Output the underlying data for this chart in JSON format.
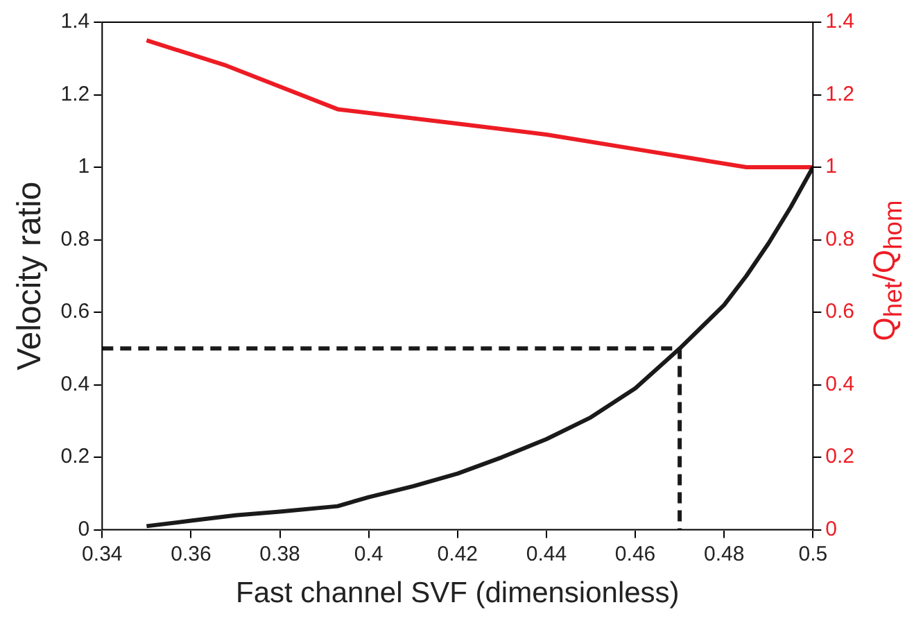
{
  "chart_data": {
    "type": "line",
    "xlabel": "Fast channel SVF (dimensionless)",
    "ylabel": "Velocity ratio",
    "y2label": "Q$_{het}$/Q$_{hom}$",
    "xlim": [
      0.34,
      0.5
    ],
    "xticks": [
      0.34,
      0.36,
      0.38,
      0.4,
      0.42,
      0.44,
      0.46,
      0.48,
      0.5
    ],
    "ylim": [
      0,
      1.4
    ],
    "yticks": [
      0,
      0.2,
      0.4,
      0.6,
      0.8,
      1,
      1.2,
      1.4
    ],
    "y2lim": [
      0,
      1.4
    ],
    "y2ticks": [
      0,
      0.2,
      0.4,
      0.6,
      0.8,
      1,
      1.2,
      1.4
    ],
    "grid": false,
    "marker": "none",
    "series": [
      {
        "color": "#1a1a1a",
        "line_style": "solid",
        "x": [
          0.35,
          0.36,
          0.37,
          0.38,
          0.393,
          0.4,
          0.41,
          0.42,
          0.43,
          0.44,
          0.45,
          0.46,
          0.47,
          0.48,
          0.485,
          0.49,
          0.495,
          0.5
        ],
        "values": [
          0.01,
          0.025,
          0.04,
          0.05,
          0.065,
          0.09,
          0.12,
          0.155,
          0.2,
          0.25,
          0.31,
          0.39,
          0.5,
          0.62,
          0.7,
          0.79,
          0.89,
          1.0
        ]
      },
      {
        "color": "#ed1c24",
        "line_style": "solid",
        "axis": "y2",
        "x": [
          0.35,
          0.368,
          0.393,
          0.42,
          0.44,
          0.46,
          0.475,
          0.485,
          0.5
        ],
        "values": [
          1.35,
          1.28,
          1.16,
          1.12,
          1.09,
          1.05,
          1.02,
          1.0,
          1.0
        ]
      },
      {
        "color": "#1a1a1a",
        "line_style": "dashed",
        "x": [
          0.34,
          0.47,
          0.47
        ],
        "values": [
          0.5,
          0.5,
          0
        ]
      }
    ]
  }
}
